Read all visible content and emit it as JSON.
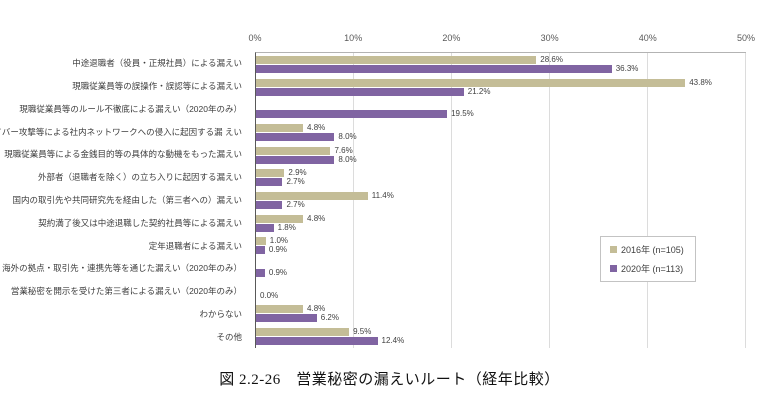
{
  "caption": "図 2.2-26　営業秘密の漏えいルート（経年比較）",
  "colors": {
    "series_2016": "#C4BD97",
    "series_2020": "#8064A2",
    "gridline": "#DCDCDC",
    "axis_line": "#595959",
    "plot_top_border": "#B3B3B3",
    "label_text": "#404040",
    "tick_text": "#595959"
  },
  "chart_data": {
    "type": "bar",
    "orientation": "horizontal",
    "title": "",
    "xlabel": "",
    "ylabel": "",
    "xlim": [
      0,
      50
    ],
    "ticks": [
      "0%",
      "10%",
      "20%",
      "30%",
      "40%",
      "50%"
    ],
    "grid": true,
    "legend_position": "middle-right",
    "value_labels": true,
    "categories": [
      "中途退職者（役員・正規社員）による漏えい",
      "現職従業員等の誤操作・誤認等による漏えい",
      "現職従業員等のルール不徹底による漏えい（2020年のみ）",
      "サイバー攻撃等による社内ネットワークへの侵入に起因する漏 えい",
      "現職従業員等による金銭目的等の具体的な動機をもった漏えい",
      "外部者（退職者を除く）の立ち入りに起因する漏えい",
      "国内の取引先や共同研究先を経由した（第三者への）漏えい",
      "契約満了後又は中途退職した契約社員等による漏えい",
      "定年退職者による漏えい",
      "海外の拠点・取引先・連携先等を通じた漏えい（2020年のみ）",
      "営業秘密を開示を受けた第三者による漏えい（2020年のみ）",
      "わからない",
      "その他"
    ],
    "series": [
      {
        "name": "2016年 (n=105)",
        "color": "#C4BD97",
        "values": [
          28.6,
          43.8,
          null,
          4.8,
          7.6,
          2.9,
          11.4,
          4.8,
          1.0,
          null,
          null,
          4.8,
          9.5
        ]
      },
      {
        "name": "2020年 (n=113)",
        "color": "#8064A2",
        "values": [
          36.3,
          21.2,
          19.5,
          8.0,
          8.0,
          2.7,
          2.7,
          1.8,
          0.9,
          0.9,
          0.0,
          6.2,
          12.4
        ]
      }
    ]
  }
}
